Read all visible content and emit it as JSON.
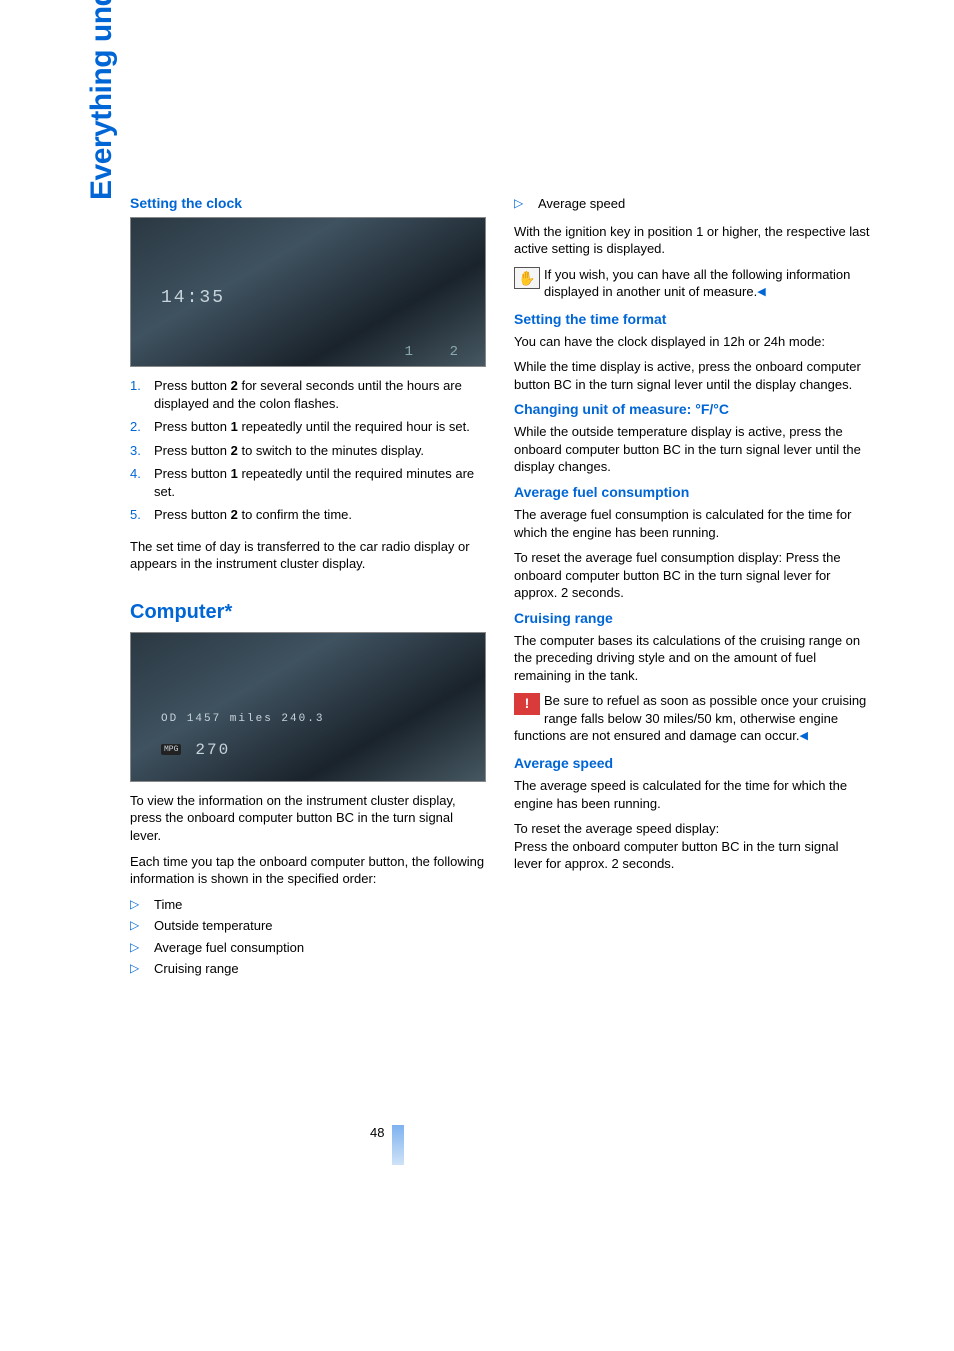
{
  "sidetab": "Everything under control",
  "page_number": "48",
  "colors": {
    "accent": "#0066d6",
    "body_text": "#000000",
    "bg": "#ffffff",
    "warn_bg": "#d93a3a"
  },
  "left": {
    "h_clock": "Setting the clock",
    "img1_text": "14:35",
    "steps": [
      {
        "n": "1.",
        "t": "Press button 2 for several seconds until the hours are displayed and the colon flashes."
      },
      {
        "n": "2.",
        "t": "Press button 1 repeatedly until the required hour is set."
      },
      {
        "n": "3.",
        "t": "Press button 2 to switch to the minutes display."
      },
      {
        "n": "4.",
        "t": "Press button 1 repeatedly until the required minutes are set."
      },
      {
        "n": "5.",
        "t": "Press button 2 to confirm the time."
      }
    ],
    "after_steps": "The set time of day is transferred to the car radio display or appears in the instrument cluster display.",
    "h_computer": "Computer*",
    "img2_line1": "OD 1457 miles 240.3",
    "img2_line2_label": "MPG",
    "img2_line2_value": "270",
    "p_view": "To view the information on the instrument cluster display, press the onboard computer button BC in the turn signal lever.",
    "p_each": "Each time you tap the onboard computer button, the following information is shown in the specified order:",
    "bullets": [
      "Time",
      "Outside temperature",
      "Average fuel consumption",
      "Cruising range"
    ]
  },
  "right": {
    "first_bullet": "Average speed",
    "p_ignition": "With the ignition key in position 1 or higher, the respective last active setting is displayed.",
    "note1": "If you wish, you can have all the following information displayed in another unit of measure.",
    "h_time_format": "Setting the time format",
    "p_time_format1": "You can have the clock displayed in 12h or 24h mode:",
    "p_time_format2": "While the time display is active, press the onboard computer button BC in the turn signal lever until the display changes.",
    "h_unit": "Changing unit of measure: °F/°C",
    "p_unit": "While the outside temperature display is active, press the onboard computer button BC in the turn signal lever until the display changes.",
    "h_avgfuel": "Average fuel consumption",
    "p_avgfuel1": "The average fuel consumption is calculated for the time for which the engine has been running.",
    "p_avgfuel2": "To reset the average fuel consumption display: Press the onboard computer button BC in the turn signal lever for approx. 2 seconds.",
    "h_cruising": "Cruising range",
    "p_cruising1": "The computer bases its calculations of the cruising range on the preceding driving style and on the amount of fuel remaining in the tank.",
    "note2": "Be sure to refuel as soon as possible once your cruising range falls below 30 miles/50 km, otherwise engine functions are not ensured and damage can occur.",
    "h_avgspeed": "Average speed",
    "p_avgspeed1": "The average speed is calculated for the time for which the engine has been running.",
    "p_avgspeed2": "To reset the average speed display:\nPress the onboard computer button BC in the turn signal lever for approx. 2 seconds."
  }
}
